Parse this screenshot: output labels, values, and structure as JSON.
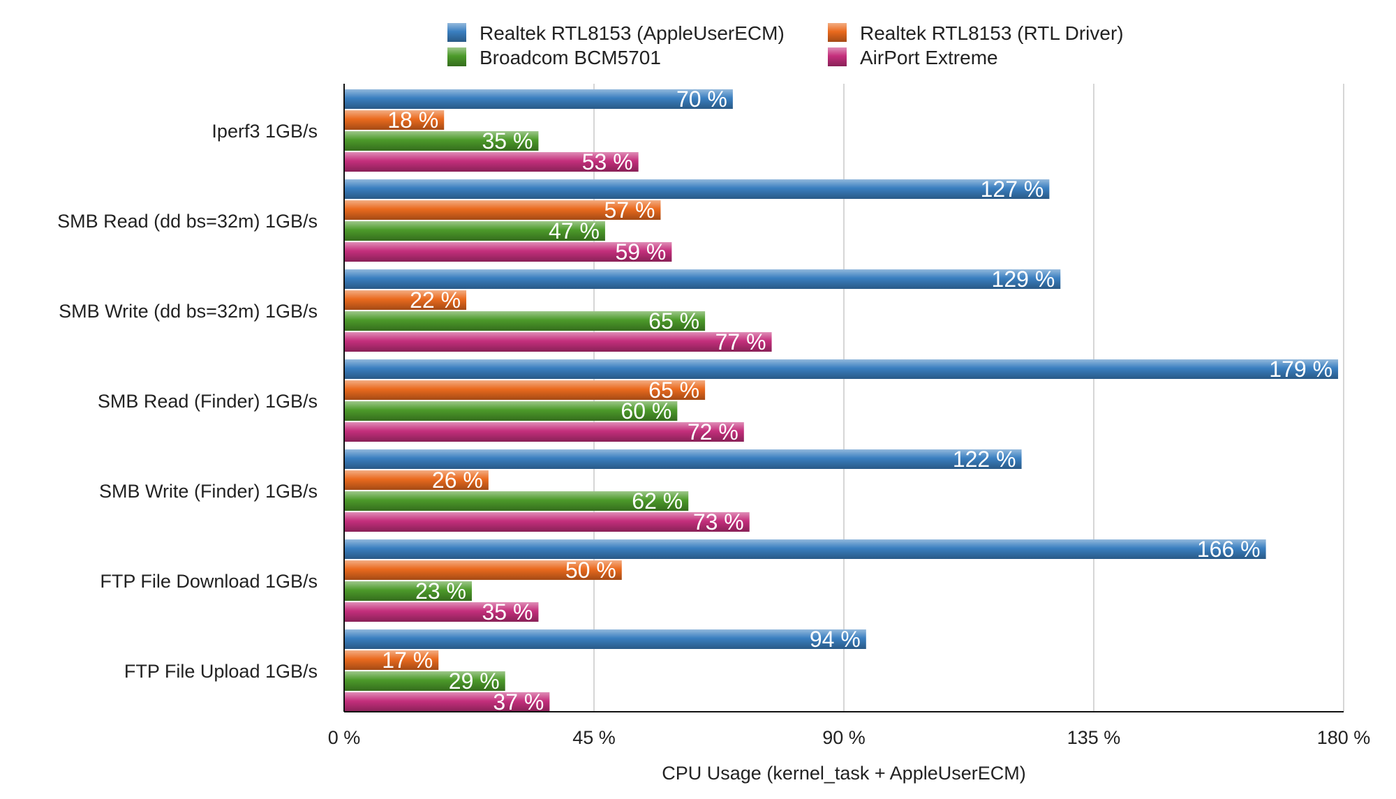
{
  "chart_data": {
    "type": "bar",
    "orientation": "horizontal",
    "title": "",
    "xlabel": "CPU Usage (kernel_task + AppleUserECM)",
    "ylabel": "",
    "xlim": [
      0,
      180
    ],
    "x_ticks": [
      0,
      45,
      90,
      135,
      180
    ],
    "x_tick_labels": [
      "0 %",
      "45 %",
      "90 %",
      "135 %",
      "180 %"
    ],
    "grid": true,
    "legend_position": "top-center",
    "value_suffix": " %",
    "categories": [
      "Iperf3 1GB/s",
      "SMB Read (dd bs=32m) 1GB/s",
      "SMB Write (dd bs=32m) 1GB/s",
      "SMB Read (Finder) 1GB/s",
      "SMB Write (Finder) 1GB/s",
      "FTP File Download 1GB/s",
      "FTP File Upload 1GB/s"
    ],
    "series": [
      {
        "name": "Realtek RTL8153 (AppleUserECM)",
        "color": "#3a7fc0",
        "values": [
          70,
          127,
          129,
          179,
          122,
          166,
          94
        ]
      },
      {
        "name": "Realtek RTL8153 (RTL Driver)",
        "color": "#ea6a1e",
        "values": [
          18,
          57,
          22,
          65,
          26,
          50,
          17
        ]
      },
      {
        "name": "Broadcom BCM5701",
        "color": "#4c9a2a",
        "values": [
          35,
          47,
          65,
          60,
          62,
          23,
          29
        ]
      },
      {
        "name": "AirPort Extreme",
        "color": "#c42f7c",
        "values": [
          53,
          59,
          77,
          72,
          73,
          35,
          37
        ]
      }
    ]
  }
}
